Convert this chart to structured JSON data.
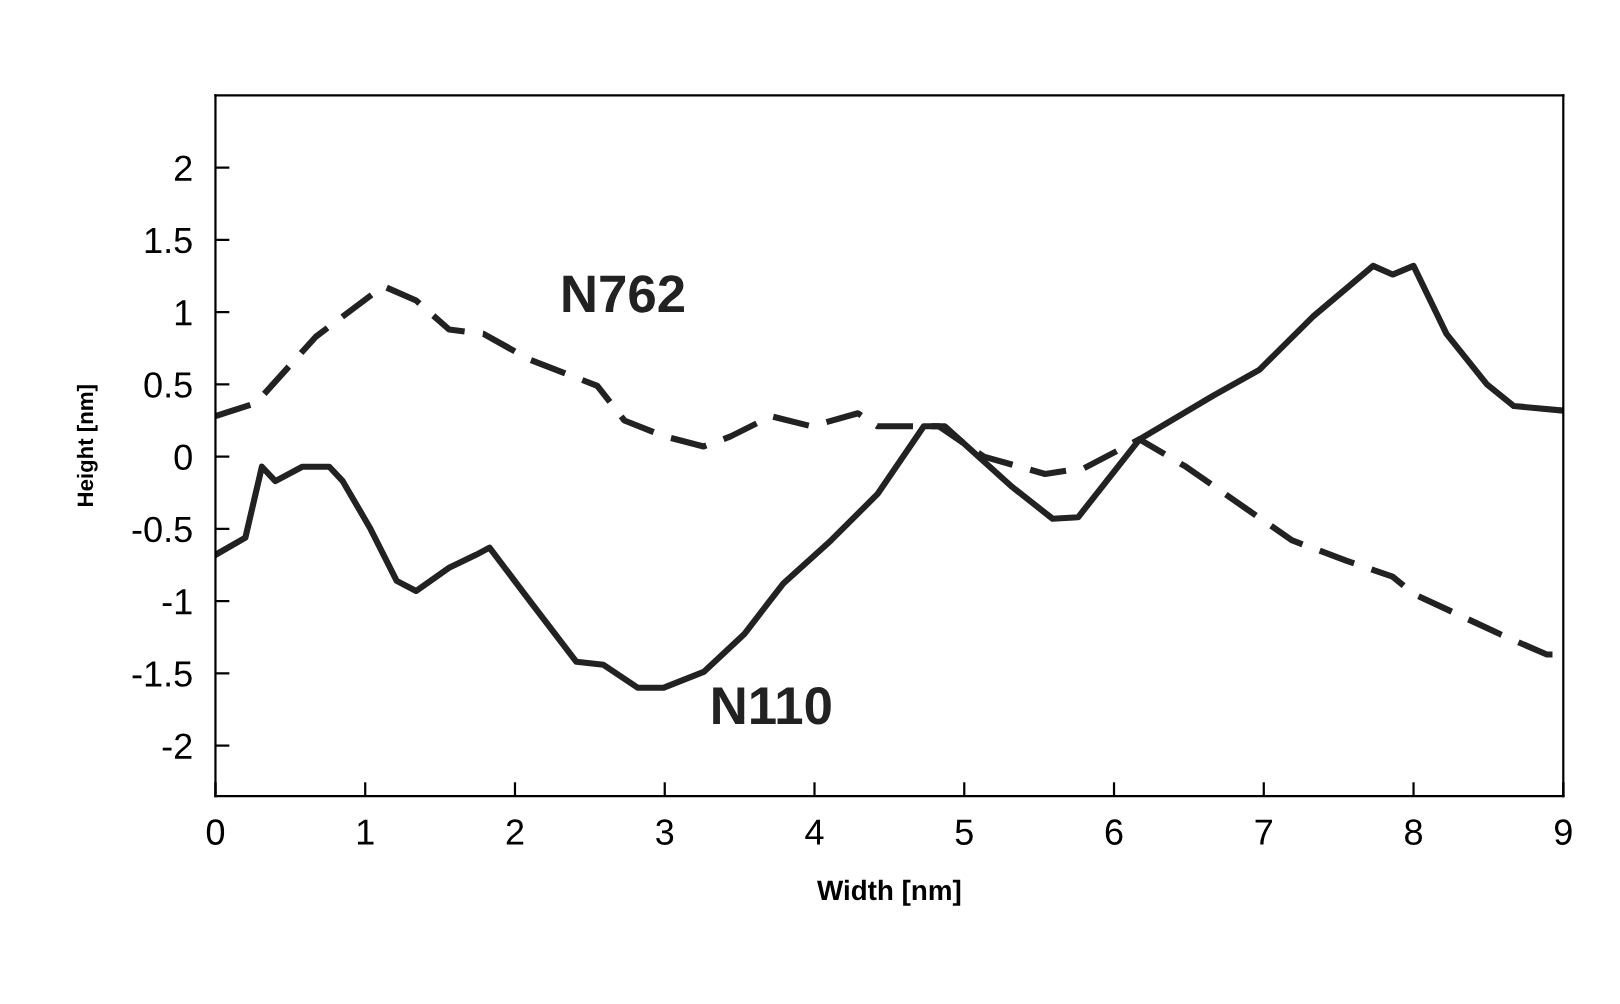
{
  "chart_data": {
    "type": "line",
    "xlabel": "Width [nm]",
    "ylabel": "Height [nm]",
    "xlim": [
      0,
      9
    ],
    "ylim": [
      -2.35,
      2.5
    ],
    "xticks": [
      0,
      1,
      2,
      3,
      4,
      5,
      6,
      7,
      8,
      9
    ],
    "yticks": [
      -2,
      -1.5,
      -1,
      -0.5,
      0,
      0.5,
      1,
      1.5,
      2
    ],
    "grid": false,
    "legend": false,
    "marker": "none",
    "series": [
      {
        "name": "N762",
        "color": "#222222",
        "line_style": "dashed",
        "x": [
          0,
          0.27,
          0.67,
          1.12,
          1.34,
          1.56,
          1.79,
          2.1,
          2.55,
          2.73,
          3.0,
          3.26,
          3.44,
          3.71,
          3.98,
          4.29,
          4.42,
          4.83,
          5.13,
          5.54,
          5.8,
          6.17,
          6.48,
          6.84,
          7.19,
          7.55,
          7.86,
          8.0,
          8.27,
          8.58,
          8.89,
          8.98
        ],
        "values": [
          0.28,
          0.37,
          0.83,
          1.18,
          1.08,
          0.88,
          0.85,
          0.67,
          0.49,
          0.25,
          0.14,
          0.07,
          0.14,
          0.28,
          0.21,
          0.3,
          0.21,
          0.21,
          0.0,
          -0.12,
          -0.08,
          0.12,
          -0.07,
          -0.33,
          -0.58,
          -0.72,
          -0.83,
          -0.95,
          -1.08,
          -1.23,
          -1.37,
          -1.37
        ]
      },
      {
        "name": "N110",
        "color": "#222222",
        "line_style": "solid",
        "x": [
          0,
          0.2,
          0.31,
          0.4,
          0.58,
          0.76,
          0.85,
          1.03,
          1.21,
          1.34,
          1.56,
          1.74,
          1.83,
          2.1,
          2.41,
          2.59,
          2.82,
          2.99,
          3.26,
          3.53,
          3.79,
          4.11,
          4.42,
          4.73,
          4.87,
          5.32,
          5.59,
          5.76,
          6.17,
          6.66,
          6.97,
          7.33,
          7.73,
          7.86,
          8.0,
          8.22,
          8.49,
          8.67,
          8.98
        ],
        "values": [
          -0.68,
          -0.56,
          -0.07,
          -0.17,
          -0.07,
          -0.07,
          -0.17,
          -0.49,
          -0.86,
          -0.93,
          -0.77,
          -0.68,
          -0.63,
          -1.0,
          -1.42,
          -1.44,
          -1.6,
          -1.6,
          -1.49,
          -1.23,
          -0.88,
          -0.58,
          -0.26,
          0.21,
          0.21,
          -0.21,
          -0.43,
          -0.42,
          0.12,
          0.42,
          0.6,
          0.97,
          1.32,
          1.26,
          1.32,
          0.85,
          0.5,
          0.35,
          0.32
        ]
      }
    ]
  }
}
